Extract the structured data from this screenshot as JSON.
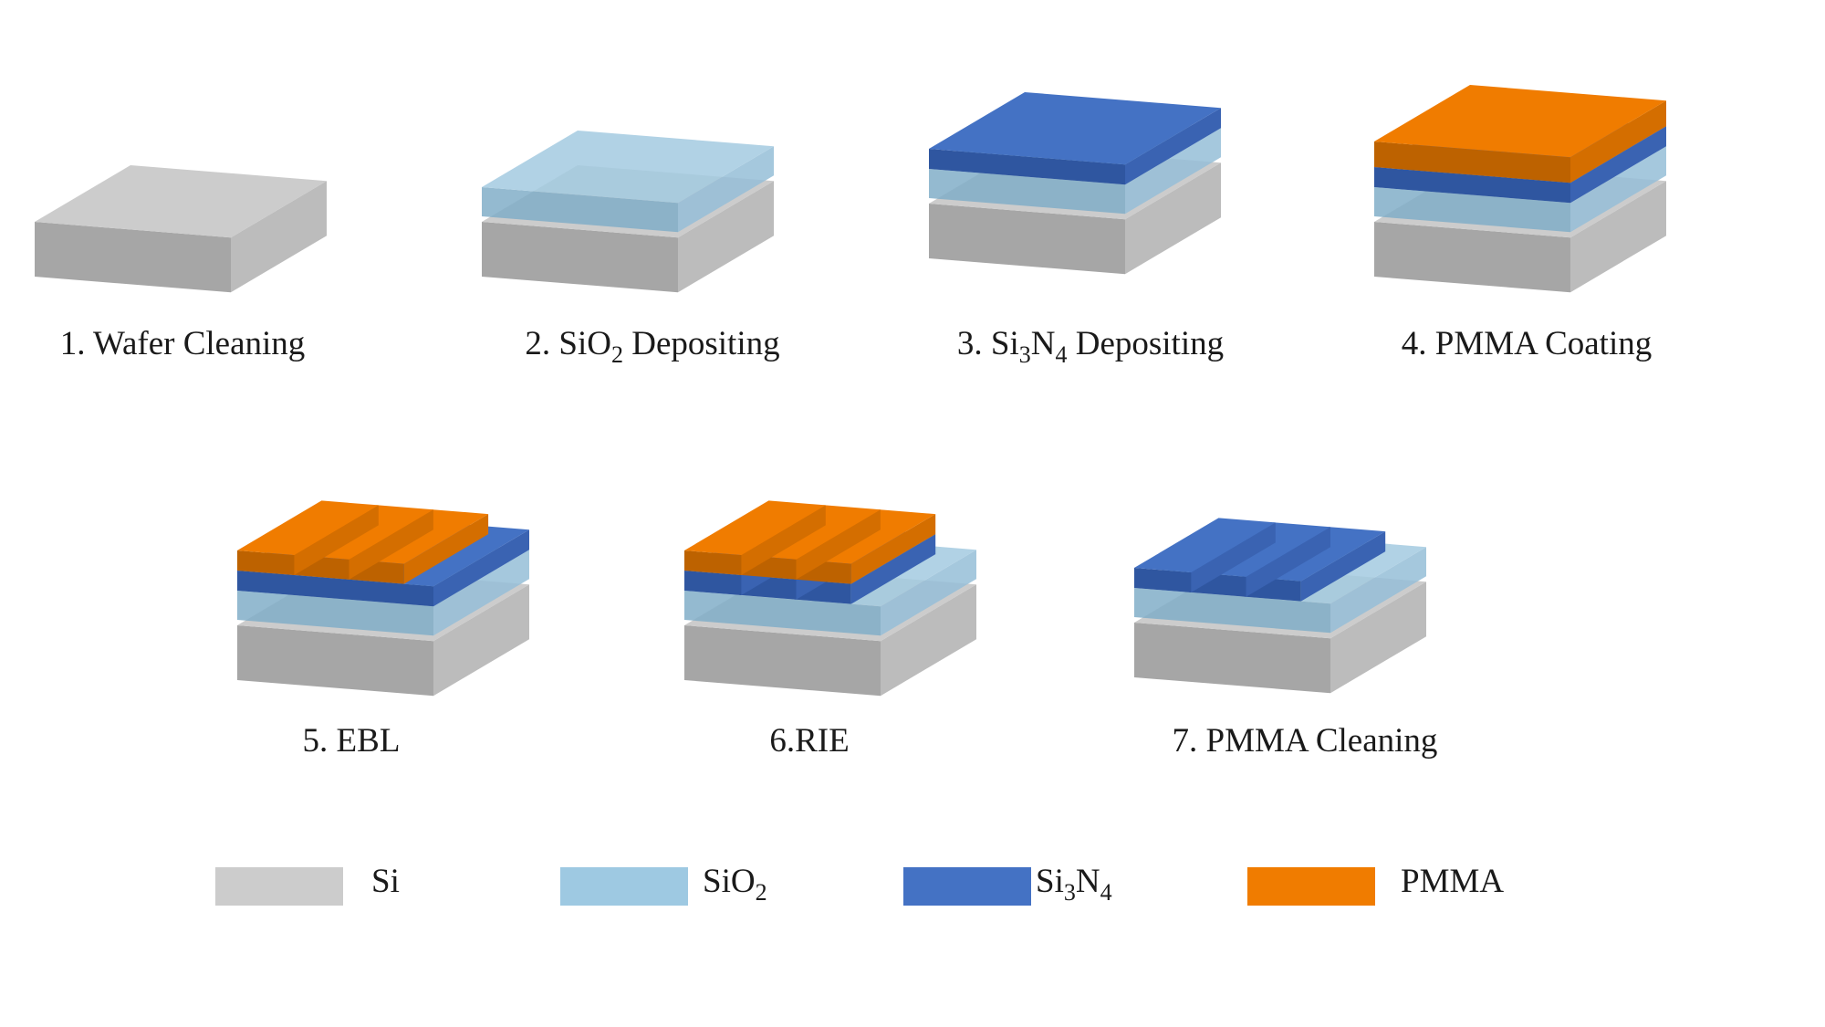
{
  "steps": [
    {
      "label": "1. Wafer Cleaning",
      "layers": [
        "Si"
      ]
    },
    {
      "label_parts": [
        "2. SiO",
        "2",
        " Depositing"
      ],
      "layers": [
        "Si",
        "SiO2"
      ]
    },
    {
      "label_parts": [
        "3. Si",
        "3",
        "N",
        "4",
        " Depositing"
      ],
      "layers": [
        "Si",
        "SiO2",
        "Si3N4"
      ]
    },
    {
      "label": "4. PMMA Coating",
      "layers": [
        "Si",
        "SiO2",
        "Si3N4",
        "PMMA"
      ]
    },
    {
      "label": "5. EBL",
      "layers": [
        "Si",
        "SiO2",
        "Si3N4",
        "PMMA stripes"
      ]
    },
    {
      "label": "6.RIE",
      "layers": [
        "Si",
        "SiO2",
        "Si3N4 stripes",
        "PMMA stripes"
      ]
    },
    {
      "label": "7. PMMA Cleaning",
      "layers": [
        "Si",
        "SiO2",
        "Si3N4 stripes"
      ]
    }
  ],
  "legend": [
    {
      "material": "Si",
      "parts": [
        "Si"
      ],
      "color": "#cccccc"
    },
    {
      "material": "SiO2",
      "parts": [
        "SiO",
        "2"
      ],
      "color": "#9ec9e2"
    },
    {
      "material": "Si3N4",
      "parts": [
        "Si",
        "3",
        "N",
        "4"
      ],
      "color": "#4472c4"
    },
    {
      "material": "PMMA",
      "parts": [
        "PMMA"
      ],
      "color": "#f07c00"
    }
  ],
  "colors": {
    "Si": {
      "top": "#cccccc",
      "front": "#a6a6a6",
      "side": "#bcbcbc"
    },
    "SiO2": {
      "top": "#a4cbe1",
      "front": "#82aec8",
      "side": "#96bfd8",
      "opacity": 0.85
    },
    "Si3N4": {
      "top": "#4472c4",
      "front": "#2f56a0",
      "side": "#3a63b2"
    },
    "PMMA": {
      "top": "#f07c00",
      "front": "#bd6200",
      "side": "#d46e00"
    }
  }
}
